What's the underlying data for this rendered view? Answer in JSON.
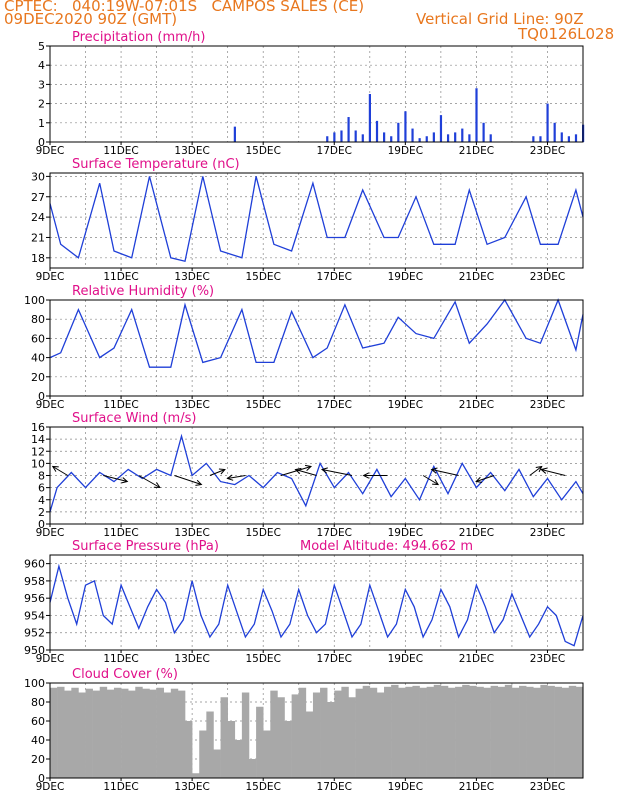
{
  "header": {
    "line1": "CPTEC:   040:19W-07:01S   CAMPOS SALES (CE)",
    "line2": "09DEC2020 90Z (GMT)",
    "grid_note": "Vertical Grid Line: 90Z",
    "run_code": "TQ0126L028"
  },
  "colors": {
    "header": "#e8771e",
    "panel_title": "#e0108a",
    "series": "#1f3fd8",
    "cloud": "#a8a8a8",
    "grid": "#888888",
    "frame": "#000000"
  },
  "x_ticks": [
    "9DEC",
    "11DEC",
    "13DEC",
    "15DEC",
    "17DEC",
    "19DEC",
    "21DEC",
    "23DEC"
  ],
  "chart_data": [
    {
      "id": "precip",
      "type": "bar",
      "title": "Precipitation (mm/h)",
      "ylim": [
        0,
        5
      ],
      "yticks": [
        "0",
        "1",
        "2",
        "3",
        "4",
        "5"
      ],
      "x": [
        14.2,
        16.8,
        17.0,
        17.2,
        17.4,
        17.6,
        17.8,
        18.0,
        18.2,
        18.4,
        18.6,
        18.8,
        19.0,
        19.2,
        19.4,
        19.6,
        19.8,
        20.0,
        20.2,
        20.4,
        20.6,
        20.8,
        21.0,
        21.2,
        21.4,
        22.6,
        22.8,
        23.0,
        23.2,
        23.4,
        23.6,
        23.8,
        24.0
      ],
      "values": [
        0.8,
        0.3,
        0.5,
        0.6,
        1.3,
        0.6,
        0.4,
        2.5,
        1.1,
        0.5,
        0.3,
        1.0,
        1.6,
        0.7,
        0.2,
        0.3,
        0.5,
        1.4,
        0.4,
        0.5,
        0.7,
        0.4,
        2.8,
        1.0,
        0.4,
        0.3,
        0.3,
        2.0,
        1.0,
        0.5,
        0.3,
        0.4,
        0.9
      ]
    },
    {
      "id": "temp",
      "type": "line",
      "title": "Surface Temperature (nC)",
      "ylim": [
        16.5,
        30.5
      ],
      "yticks": [
        "18",
        "21",
        "24",
        "27",
        "30"
      ],
      "tick_values": [
        18,
        21,
        24,
        27,
        30
      ],
      "x": [
        9.0,
        9.3,
        9.8,
        10.4,
        10.8,
        11.3,
        11.8,
        12.4,
        12.8,
        13.3,
        13.8,
        14.4,
        14.8,
        15.3,
        15.8,
        16.4,
        16.8,
        17.3,
        17.8,
        18.4,
        18.8,
        19.3,
        19.8,
        20.4,
        20.8,
        21.3,
        21.8,
        22.4,
        22.8,
        23.3,
        23.8,
        24.0
      ],
      "values": [
        26.0,
        20.0,
        18.0,
        29.0,
        19.0,
        18.0,
        30.0,
        18.0,
        17.5,
        30.0,
        19.0,
        18.0,
        30.0,
        20.0,
        19.0,
        29.0,
        21.0,
        21.0,
        28.0,
        21.0,
        21.0,
        27.0,
        20.0,
        20.0,
        28.0,
        20.0,
        21.0,
        27.0,
        20.0,
        20.0,
        28.0,
        24.0
      ]
    },
    {
      "id": "rh",
      "type": "line",
      "title": "Relative Humidity (%)",
      "ylim": [
        0,
        100
      ],
      "yticks": [
        "0",
        "20",
        "40",
        "60",
        "80",
        "100"
      ],
      "tick_values": [
        0,
        20,
        40,
        60,
        80,
        100
      ],
      "x": [
        9.0,
        9.3,
        9.8,
        10.4,
        10.8,
        11.3,
        11.8,
        12.4,
        12.8,
        13.3,
        13.8,
        14.4,
        14.8,
        15.3,
        15.8,
        16.4,
        16.8,
        17.3,
        17.8,
        18.4,
        18.8,
        19.3,
        19.8,
        20.4,
        20.8,
        21.3,
        21.8,
        22.4,
        22.8,
        23.3,
        23.8,
        24.0
      ],
      "values": [
        40.0,
        45.0,
        90.0,
        40.0,
        50.0,
        90.0,
        30.0,
        30.0,
        95.0,
        35.0,
        40.0,
        90.0,
        35.0,
        35.0,
        88.0,
        40.0,
        50.0,
        95.0,
        50.0,
        55.0,
        82.0,
        65.0,
        60.0,
        98.0,
        55.0,
        75.0,
        100.0,
        60.0,
        55.0,
        100.0,
        48.0,
        85.0
      ]
    },
    {
      "id": "wind",
      "type": "line",
      "title": "Surface Wind (m/s)",
      "ylim": [
        0,
        16
      ],
      "yticks": [
        "0",
        "2",
        "4",
        "6",
        "8",
        "10",
        "12",
        "14",
        "16"
      ],
      "tick_values": [
        0,
        2,
        4,
        6,
        8,
        10,
        12,
        14,
        16
      ],
      "x": [
        9.0,
        9.2,
        9.6,
        10.0,
        10.4,
        10.8,
        11.2,
        11.6,
        12.0,
        12.4,
        12.7,
        13.0,
        13.4,
        13.8,
        14.2,
        14.6,
        15.0,
        15.4,
        15.8,
        16.2,
        16.6,
        17.0,
        17.4,
        17.8,
        18.2,
        18.6,
        19.0,
        19.4,
        19.8,
        20.2,
        20.6,
        21.0,
        21.4,
        21.8,
        22.2,
        22.6,
        23.0,
        23.4,
        23.8,
        24.0
      ],
      "values": [
        2.0,
        6.0,
        8.5,
        6.0,
        8.5,
        7.0,
        9.0,
        7.5,
        9.0,
        8.0,
        14.5,
        8.0,
        10.0,
        7.0,
        6.5,
        8.0,
        6.0,
        8.5,
        7.5,
        3.0,
        10.0,
        6.0,
        8.5,
        5.0,
        9.0,
        4.5,
        7.5,
        4.0,
        9.5,
        5.0,
        10.0,
        6.0,
        8.5,
        5.5,
        9.0,
        4.5,
        7.5,
        4.0,
        7.0,
        5.0
      ],
      "barbs_x": [
        9.5,
        10.5,
        11.5,
        12.5,
        13.5,
        14.5,
        15.5,
        16.5,
        17.5,
        18.5,
        19.5,
        20.5,
        21.5,
        22.5,
        23.5
      ],
      "barbs_u": [
        -0.5,
        0.8,
        0.7,
        0.9,
        0.5,
        -0.6,
        1.0,
        -0.7,
        -1.0,
        -0.8,
        0.5,
        -0.9,
        -0.6,
        0.4,
        -0.8
      ],
      "barbs_v": [
        -0.3,
        0.2,
        0.4,
        0.3,
        -0.2,
        0.1,
        -0.3,
        -0.2,
        -0.2,
        0.0,
        0.3,
        -0.2,
        0.2,
        -0.3,
        -0.2
      ]
    },
    {
      "id": "pressure",
      "type": "line",
      "title": "Surface Pressure (hPa)",
      "annotation": "Model Altitude: 494.662  m",
      "ylim": [
        950,
        961
      ],
      "yticks": [
        "950",
        "952",
        "954",
        "956",
        "958",
        "960"
      ],
      "tick_values": [
        950,
        952,
        954,
        956,
        958,
        960
      ],
      "x": [
        9.0,
        9.25,
        9.5,
        9.75,
        10.0,
        10.25,
        10.5,
        10.75,
        11.0,
        11.25,
        11.5,
        11.75,
        12.0,
        12.25,
        12.5,
        12.75,
        13.0,
        13.25,
        13.5,
        13.75,
        14.0,
        14.25,
        14.5,
        14.75,
        15.0,
        15.25,
        15.5,
        15.75,
        16.0,
        16.25,
        16.5,
        16.75,
        17.0,
        17.25,
        17.5,
        17.75,
        18.0,
        18.25,
        18.5,
        18.75,
        19.0,
        19.25,
        19.5,
        19.75,
        20.0,
        20.25,
        20.5,
        20.75,
        21.0,
        21.25,
        21.5,
        21.75,
        22.0,
        22.25,
        22.5,
        22.75,
        23.0,
        23.25,
        23.5,
        23.75,
        24.0
      ],
      "values": [
        955.5,
        959.7,
        956.0,
        953.0,
        957.5,
        958.0,
        954.0,
        953.0,
        957.5,
        955.0,
        952.5,
        955.0,
        957.0,
        955.5,
        952.0,
        953.5,
        958.0,
        954.0,
        951.5,
        953.0,
        957.5,
        954.5,
        951.5,
        953.0,
        957.0,
        954.5,
        951.5,
        953.0,
        957.0,
        954.0,
        952.0,
        953.0,
        957.5,
        954.5,
        951.5,
        953.0,
        957.5,
        954.5,
        951.5,
        953.0,
        957.0,
        955.0,
        951.5,
        953.5,
        957.0,
        955.0,
        951.5,
        953.5,
        957.5,
        955.0,
        952.0,
        953.5,
        956.5,
        954.0,
        951.5,
        953.0,
        955.0,
        954.0,
        951.0,
        950.5,
        954.0
      ]
    },
    {
      "id": "cloud",
      "type": "bar",
      "title": "Cloud Cover (%)",
      "ylim": [
        0,
        100
      ],
      "yticks": [
        "0",
        "20",
        "40",
        "60",
        "80",
        "100"
      ],
      "tick_values": [
        0,
        20,
        40,
        60,
        80,
        100
      ],
      "x": [
        9.0,
        9.2,
        9.4,
        9.6,
        9.8,
        10.0,
        10.2,
        10.4,
        10.6,
        10.8,
        11.0,
        11.2,
        11.4,
        11.6,
        11.8,
        12.0,
        12.2,
        12.4,
        12.6,
        12.8,
        13.0,
        13.2,
        13.4,
        13.6,
        13.8,
        14.0,
        14.2,
        14.4,
        14.6,
        14.8,
        15.0,
        15.2,
        15.4,
        15.6,
        15.8,
        16.0,
        16.2,
        16.4,
        16.6,
        16.8,
        17.0,
        17.2,
        17.4,
        17.6,
        17.8,
        18.0,
        18.2,
        18.4,
        18.6,
        18.8,
        19.0,
        19.2,
        19.4,
        19.6,
        19.8,
        20.0,
        20.2,
        20.4,
        20.6,
        20.8,
        21.0,
        21.2,
        21.4,
        21.6,
        21.8,
        22.0,
        22.2,
        22.4,
        22.6,
        22.8,
        23.0,
        23.2,
        23.4,
        23.6,
        23.8
      ],
      "values": [
        95,
        96,
        92,
        95,
        90,
        94,
        92,
        96,
        93,
        95,
        94,
        92,
        96,
        94,
        93,
        95,
        90,
        94,
        92,
        60,
        5,
        50,
        70,
        30,
        85,
        60,
        40,
        90,
        20,
        75,
        50,
        92,
        85,
        60,
        88,
        95,
        70,
        90,
        95,
        80,
        92,
        96,
        85,
        94,
        97,
        95,
        90,
        96,
        98,
        95,
        96,
        97,
        95,
        96,
        98,
        97,
        95,
        96,
        98,
        97,
        96,
        95,
        97,
        96,
        98,
        95,
        97,
        96,
        95,
        98,
        97,
        96,
        95,
        97,
        96
      ]
    }
  ]
}
